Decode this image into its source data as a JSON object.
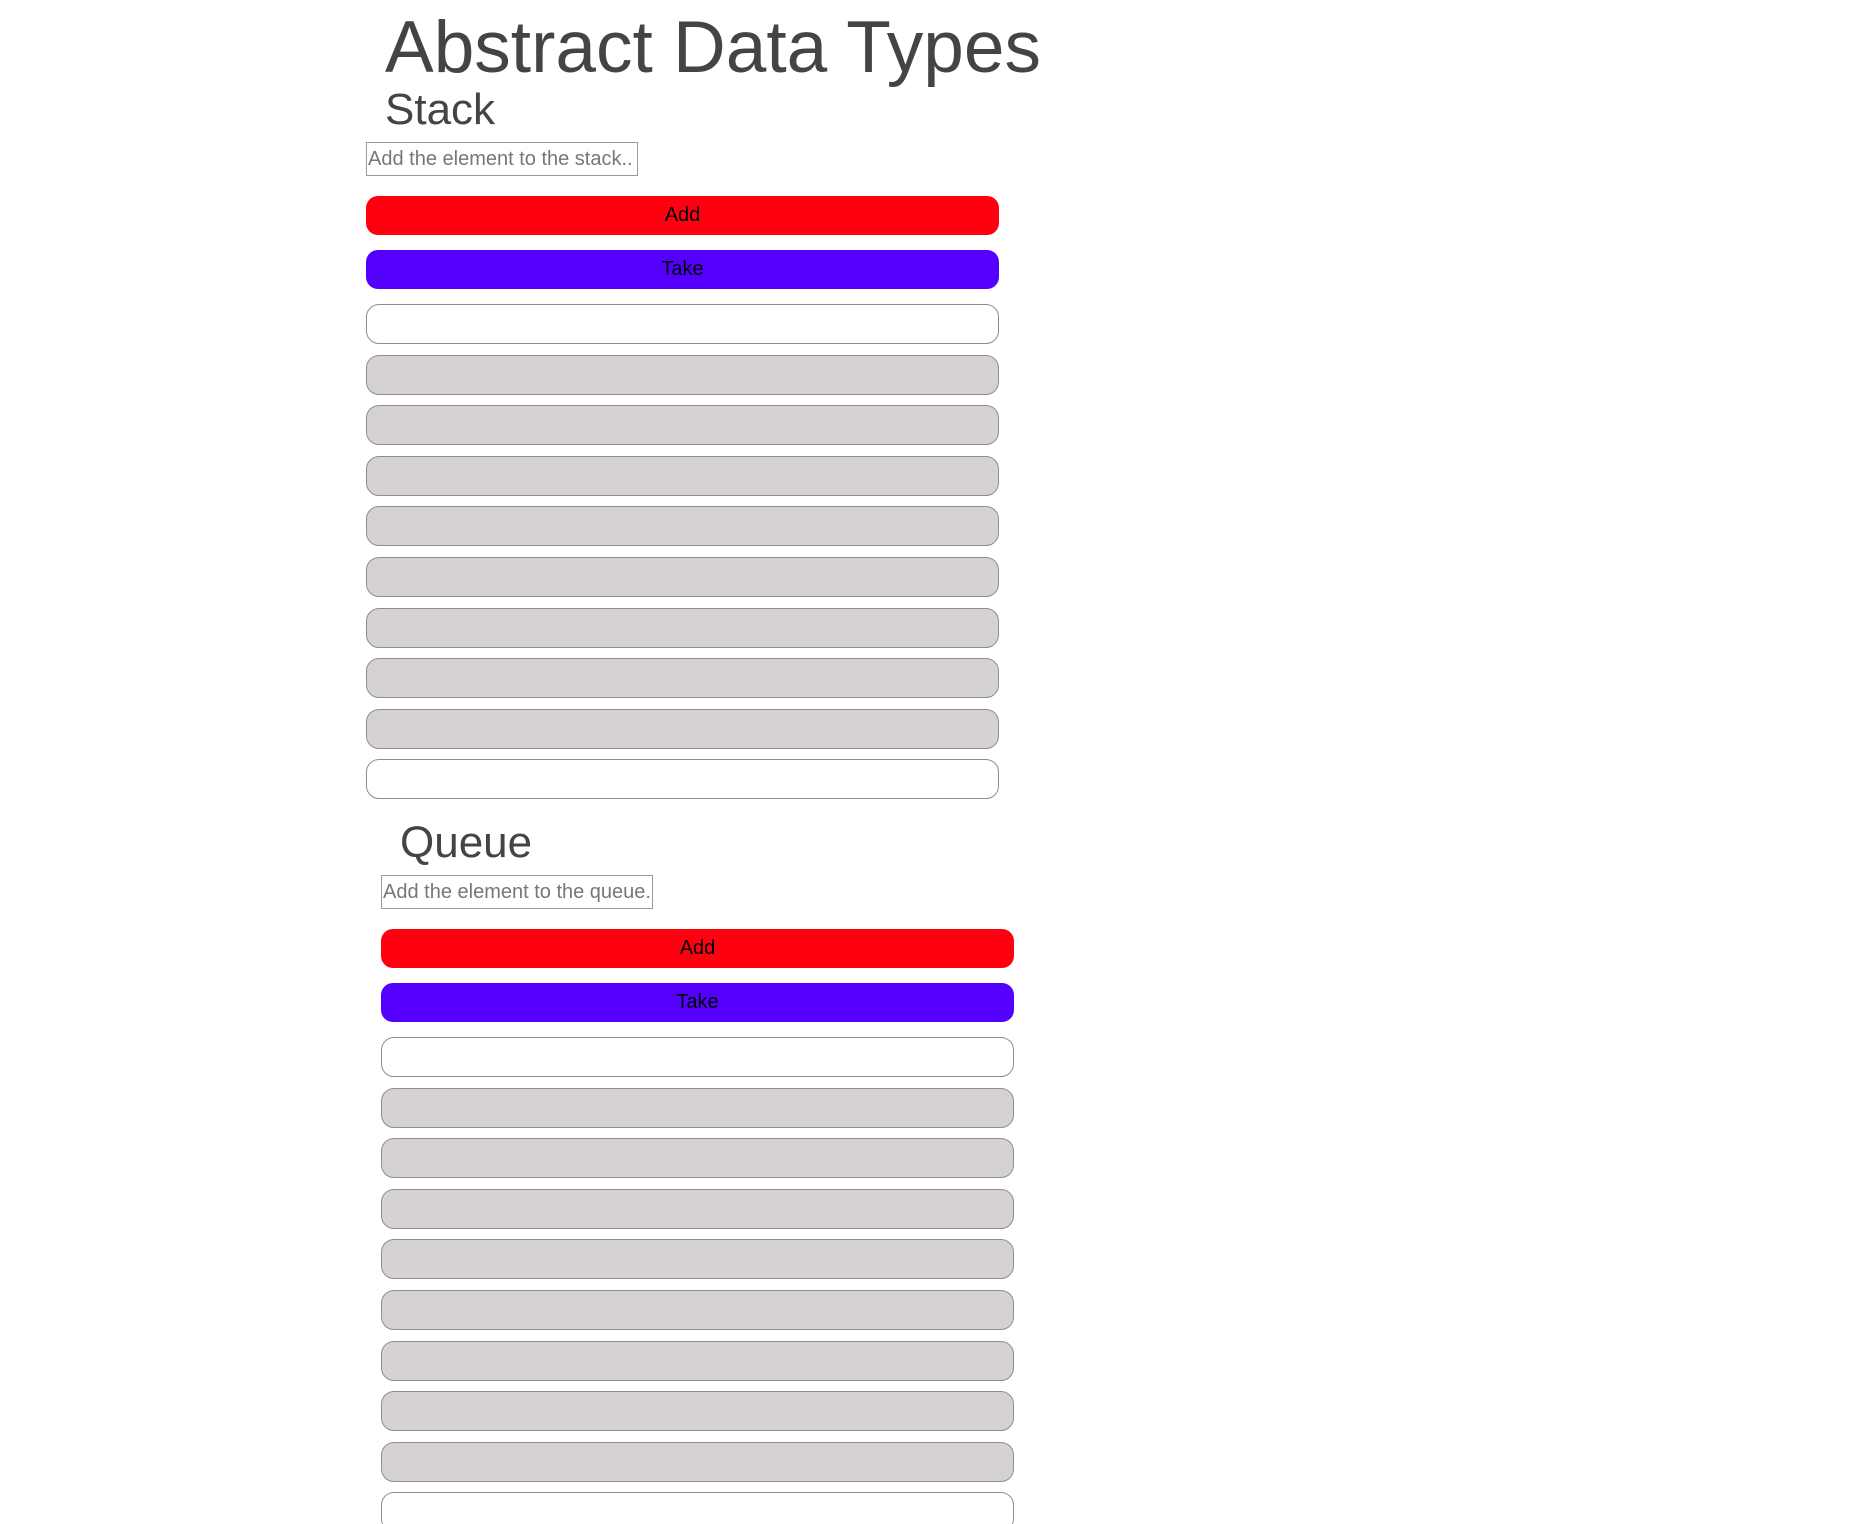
{
  "page": {
    "title": "Abstract Data Types"
  },
  "stack": {
    "title": "Stack",
    "input_placeholder": "Add the element to the stack..",
    "add_label": "Add",
    "take_label": "Take",
    "add_color": "#ff0011",
    "take_color": "#5500ff",
    "slots": [
      "empty",
      "filled",
      "filled",
      "filled",
      "filled",
      "filled",
      "filled",
      "filled",
      "filled",
      "empty"
    ]
  },
  "queue": {
    "title": "Queue",
    "input_placeholder": "Add the element to the queue.",
    "add_label": "Add",
    "take_label": "Take",
    "add_color": "#ff0011",
    "take_color": "#5500ff",
    "slots": [
      "empty",
      "filled",
      "filled",
      "filled",
      "filled",
      "filled",
      "filled",
      "filled",
      "filled",
      "empty"
    ]
  }
}
